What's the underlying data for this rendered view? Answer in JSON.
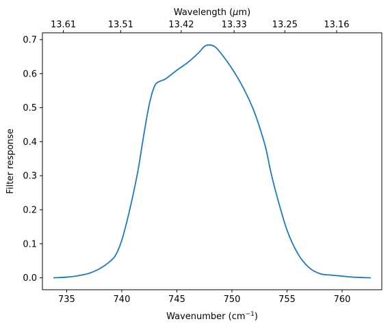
{
  "chart_data": {
    "type": "line",
    "xlabel": "Wavenumber (cm",
    "xlabel_sup": "−1",
    "xlabel_end": ")",
    "ylabel": "Filter response",
    "top_xlabel": "Wavelength (",
    "top_xlabel_mu": "μ",
    "top_xlabel_end": "m)",
    "xlim": [
      732.8,
      763.6
    ],
    "ylim": [
      -0.035,
      0.72
    ],
    "x_ticks": [
      {
        "value": 735,
        "label": "735"
      },
      {
        "value": 740,
        "label": "740"
      },
      {
        "value": 745,
        "label": "745"
      },
      {
        "value": 750,
        "label": "750"
      },
      {
        "value": 755,
        "label": "755"
      },
      {
        "value": 760,
        "label": "760"
      }
    ],
    "y_ticks": [
      {
        "value": 0.0,
        "label": "0.0"
      },
      {
        "value": 0.1,
        "label": "0.1"
      },
      {
        "value": 0.2,
        "label": "0.2"
      },
      {
        "value": 0.3,
        "label": "0.3"
      },
      {
        "value": 0.4,
        "label": "0.4"
      },
      {
        "value": 0.5,
        "label": "0.5"
      },
      {
        "value": 0.6,
        "label": "0.6"
      },
      {
        "value": 0.7,
        "label": "0.7"
      }
    ],
    "top_ticks": [
      {
        "wavenumber": 734.7,
        "label": "13.61"
      },
      {
        "wavenumber": 739.9,
        "label": "13.51"
      },
      {
        "wavenumber": 745.4,
        "label": "13.42"
      },
      {
        "wavenumber": 750.2,
        "label": "13.33"
      },
      {
        "wavenumber": 754.8,
        "label": "13.25"
      },
      {
        "wavenumber": 759.5,
        "label": "13.16"
      }
    ],
    "series": [
      {
        "color": "#1f77b4",
        "x": [
          733.8,
          735.0,
          736.0,
          737.0,
          738.0,
          739.0,
          739.5,
          740.0,
          740.5,
          741.0,
          741.5,
          742.0,
          742.5,
          743.0,
          743.5,
          744.0,
          745.0,
          746.0,
          747.0,
          747.5,
          748.0,
          748.5,
          749.0,
          750.0,
          751.0,
          752.0,
          753.0,
          753.5,
          754.0,
          755.0,
          756.0,
          757.0,
          758.0,
          759.0,
          760.0,
          761.0,
          762.6
        ],
        "y": [
          0.0,
          0.002,
          0.006,
          0.013,
          0.027,
          0.05,
          0.07,
          0.11,
          0.17,
          0.24,
          0.32,
          0.42,
          0.51,
          0.565,
          0.578,
          0.585,
          0.61,
          0.633,
          0.662,
          0.68,
          0.684,
          0.678,
          0.66,
          0.615,
          0.56,
          0.49,
          0.39,
          0.315,
          0.25,
          0.14,
          0.07,
          0.03,
          0.012,
          0.008,
          0.005,
          0.002,
          0.0
        ]
      }
    ]
  }
}
